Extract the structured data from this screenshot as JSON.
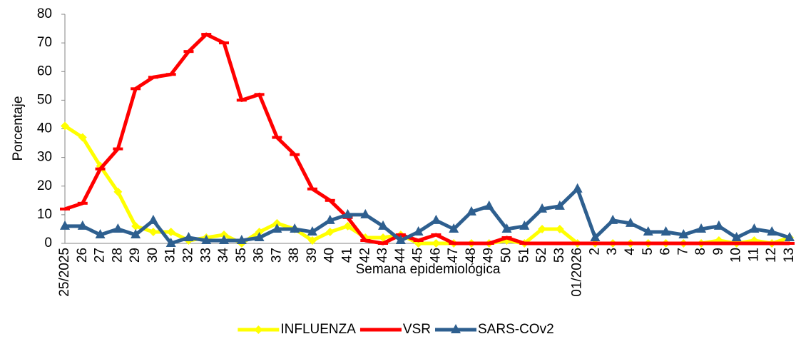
{
  "chart_data": {
    "type": "line",
    "x_label": "Semana epidemiológica",
    "y_label": "Porcentaje",
    "categories": [
      "25/2025",
      "26",
      "27",
      "28",
      "29",
      "30",
      "31",
      "32",
      "33",
      "34",
      "35",
      "36",
      "37",
      "38",
      "39",
      "40",
      "41",
      "42",
      "43",
      "44",
      "45",
      "46",
      "47",
      "48",
      "49",
      "50",
      "51",
      "52",
      "53",
      "01/2026",
      "2",
      "3",
      "4",
      "5",
      "6",
      "7",
      "8",
      "9",
      "10",
      "11",
      "12",
      "13"
    ],
    "series": [
      {
        "name": "INFLUENZA",
        "color": "#ffff00",
        "marker": "diamond",
        "values": [
          41,
          37,
          27,
          18,
          6,
          4,
          4,
          1,
          2,
          3,
          0,
          4,
          7,
          5,
          1,
          4,
          6,
          2,
          2,
          3,
          0,
          0,
          0,
          0,
          0,
          1,
          0,
          5,
          5,
          0,
          0,
          0,
          0,
          0,
          0,
          0,
          0,
          1,
          0,
          1,
          0,
          2
        ]
      },
      {
        "name": "VSR",
        "color": "#ff0000",
        "marker": "dash",
        "values": [
          12,
          14,
          26,
          33,
          54,
          58,
          59,
          67,
          73,
          70,
          50,
          52,
          37,
          31,
          19,
          15,
          9,
          1,
          0,
          3,
          1,
          3,
          0,
          0,
          0,
          2,
          0,
          0,
          0,
          0,
          0,
          0,
          0,
          0,
          0,
          0,
          0,
          0,
          0,
          0,
          0,
          0
        ]
      },
      {
        "name": "SARS-COv2",
        "color": "#2e5f8f",
        "marker": "triangle",
        "values": [
          6,
          6,
          3,
          5,
          3,
          8,
          0,
          2,
          1,
          1,
          1,
          2,
          5,
          5,
          4,
          8,
          10,
          10,
          6,
          1,
          4,
          8,
          5,
          11,
          13,
          5,
          6,
          12,
          13,
          19,
          2,
          8,
          7,
          4,
          4,
          3,
          5,
          6,
          2,
          5,
          4,
          2
        ]
      }
    ],
    "ylim": [
      0,
      80
    ],
    "yticks": [
      0,
      10,
      20,
      30,
      40,
      50,
      60,
      70,
      80
    ],
    "grid": false,
    "legend": "bottom"
  }
}
